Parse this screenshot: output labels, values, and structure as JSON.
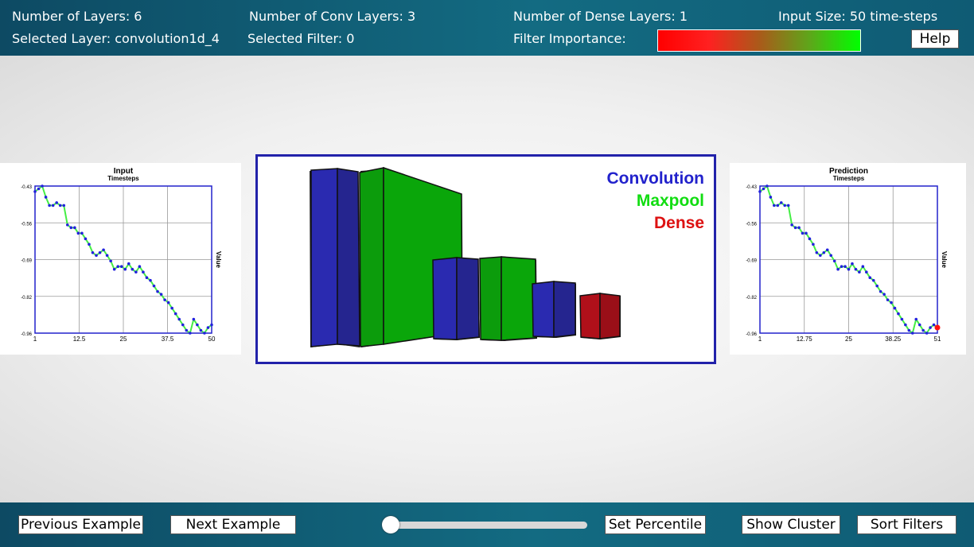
{
  "header": {
    "num_layers": "Number of Layers: 6",
    "num_conv": "Number of Conv Layers: 3",
    "num_dense": "Number of Dense Layers: 1",
    "input_size": "Input Size: 50 time-steps",
    "selected_layer": "Selected Layer: convolution1d_4",
    "selected_filter": "Selected Filter: 0",
    "filter_importance": "Filter Importance:",
    "help": "Help"
  },
  "legend": {
    "conv": "Convolution",
    "maxpool": "Maxpool",
    "dense": "Dense"
  },
  "colors": {
    "conv": "#2a2ab0",
    "maxpool": "#0aa60a",
    "dense": "#b0101a",
    "importance_gradient": [
      "#ff0000",
      "#ff2020",
      "#aa5a1a",
      "#5ea61a",
      "#00ff00"
    ]
  },
  "plots": {
    "input": {
      "title": "Input",
      "subtitle": "Timesteps",
      "ylabel": "Value",
      "xticks": [
        "1",
        "12.5",
        "25",
        "37.5",
        "50"
      ],
      "yticks": [
        "-0.43",
        "-0.56",
        "-0.69",
        "-0.82",
        "-0.96"
      ]
    },
    "prediction": {
      "title": "Prediction",
      "subtitle": "Timesteps",
      "ylabel": "Value",
      "xticks": [
        "1",
        "12.75",
        "25",
        "38.25",
        "51"
      ],
      "yticks": [
        "-0.43",
        "-0.56",
        "-0.69",
        "-0.82",
        "-0.96"
      ]
    }
  },
  "chart_data": [
    {
      "type": "line",
      "title": "Input",
      "xlabel": "Timesteps",
      "ylabel": "Value",
      "xlim": [
        1,
        50
      ],
      "ylim": [
        -0.96,
        -0.43
      ],
      "x": [
        1,
        2,
        3,
        4,
        5,
        6,
        7,
        8,
        9,
        10,
        11,
        12,
        13,
        14,
        15,
        16,
        17,
        18,
        19,
        20,
        21,
        22,
        23,
        24,
        25,
        26,
        27,
        28,
        29,
        30,
        31,
        32,
        33,
        34,
        35,
        36,
        37,
        38,
        39,
        40,
        41,
        42,
        43,
        44,
        45,
        46,
        47,
        48,
        49,
        50
      ],
      "series": [
        {
          "values": [
            -0.45,
            -0.44,
            -0.43,
            -0.47,
            -0.5,
            -0.5,
            -0.49,
            -0.5,
            -0.5,
            -0.57,
            -0.58,
            -0.58,
            -0.6,
            -0.6,
            -0.62,
            -0.64,
            -0.67,
            -0.68,
            -0.67,
            -0.66,
            -0.68,
            -0.7,
            -0.73,
            -0.72,
            -0.72,
            -0.73,
            -0.71,
            -0.73,
            -0.74,
            -0.72,
            -0.74,
            -0.76,
            -0.77,
            -0.79,
            -0.81,
            -0.82,
            -0.84,
            -0.85,
            -0.87,
            -0.89,
            -0.91,
            -0.93,
            -0.95,
            -0.96,
            -0.91,
            -0.93,
            -0.95,
            -0.96,
            -0.94,
            -0.93
          ]
        }
      ]
    },
    {
      "type": "line",
      "title": "Prediction",
      "xlabel": "Timesteps",
      "ylabel": "Value",
      "xlim": [
        1,
        51
      ],
      "ylim": [
        -0.96,
        -0.43
      ],
      "x": [
        1,
        2,
        3,
        4,
        5,
        6,
        7,
        8,
        9,
        10,
        11,
        12,
        13,
        14,
        15,
        16,
        17,
        18,
        19,
        20,
        21,
        22,
        23,
        24,
        25,
        26,
        27,
        28,
        29,
        30,
        31,
        32,
        33,
        34,
        35,
        36,
        37,
        38,
        39,
        40,
        41,
        42,
        43,
        44,
        45,
        46,
        47,
        48,
        49,
        50,
        51
      ],
      "series": [
        {
          "values": [
            -0.45,
            -0.44,
            -0.43,
            -0.47,
            -0.5,
            -0.5,
            -0.49,
            -0.5,
            -0.5,
            -0.57,
            -0.58,
            -0.58,
            -0.6,
            -0.6,
            -0.62,
            -0.64,
            -0.67,
            -0.68,
            -0.67,
            -0.66,
            -0.68,
            -0.7,
            -0.73,
            -0.72,
            -0.72,
            -0.73,
            -0.71,
            -0.73,
            -0.74,
            -0.72,
            -0.74,
            -0.76,
            -0.77,
            -0.79,
            -0.81,
            -0.82,
            -0.84,
            -0.85,
            -0.87,
            -0.89,
            -0.91,
            -0.93,
            -0.95,
            -0.96,
            -0.91,
            -0.93,
            -0.95,
            -0.96,
            -0.94,
            -0.93,
            -0.94
          ]
        }
      ]
    }
  ],
  "footer": {
    "prev": "Previous Example",
    "next": "Next Example",
    "set_percentile": "Set Percentile",
    "show_cluster": "Show Cluster",
    "sort_filters": "Sort Filters",
    "percentile_slider": 0
  }
}
